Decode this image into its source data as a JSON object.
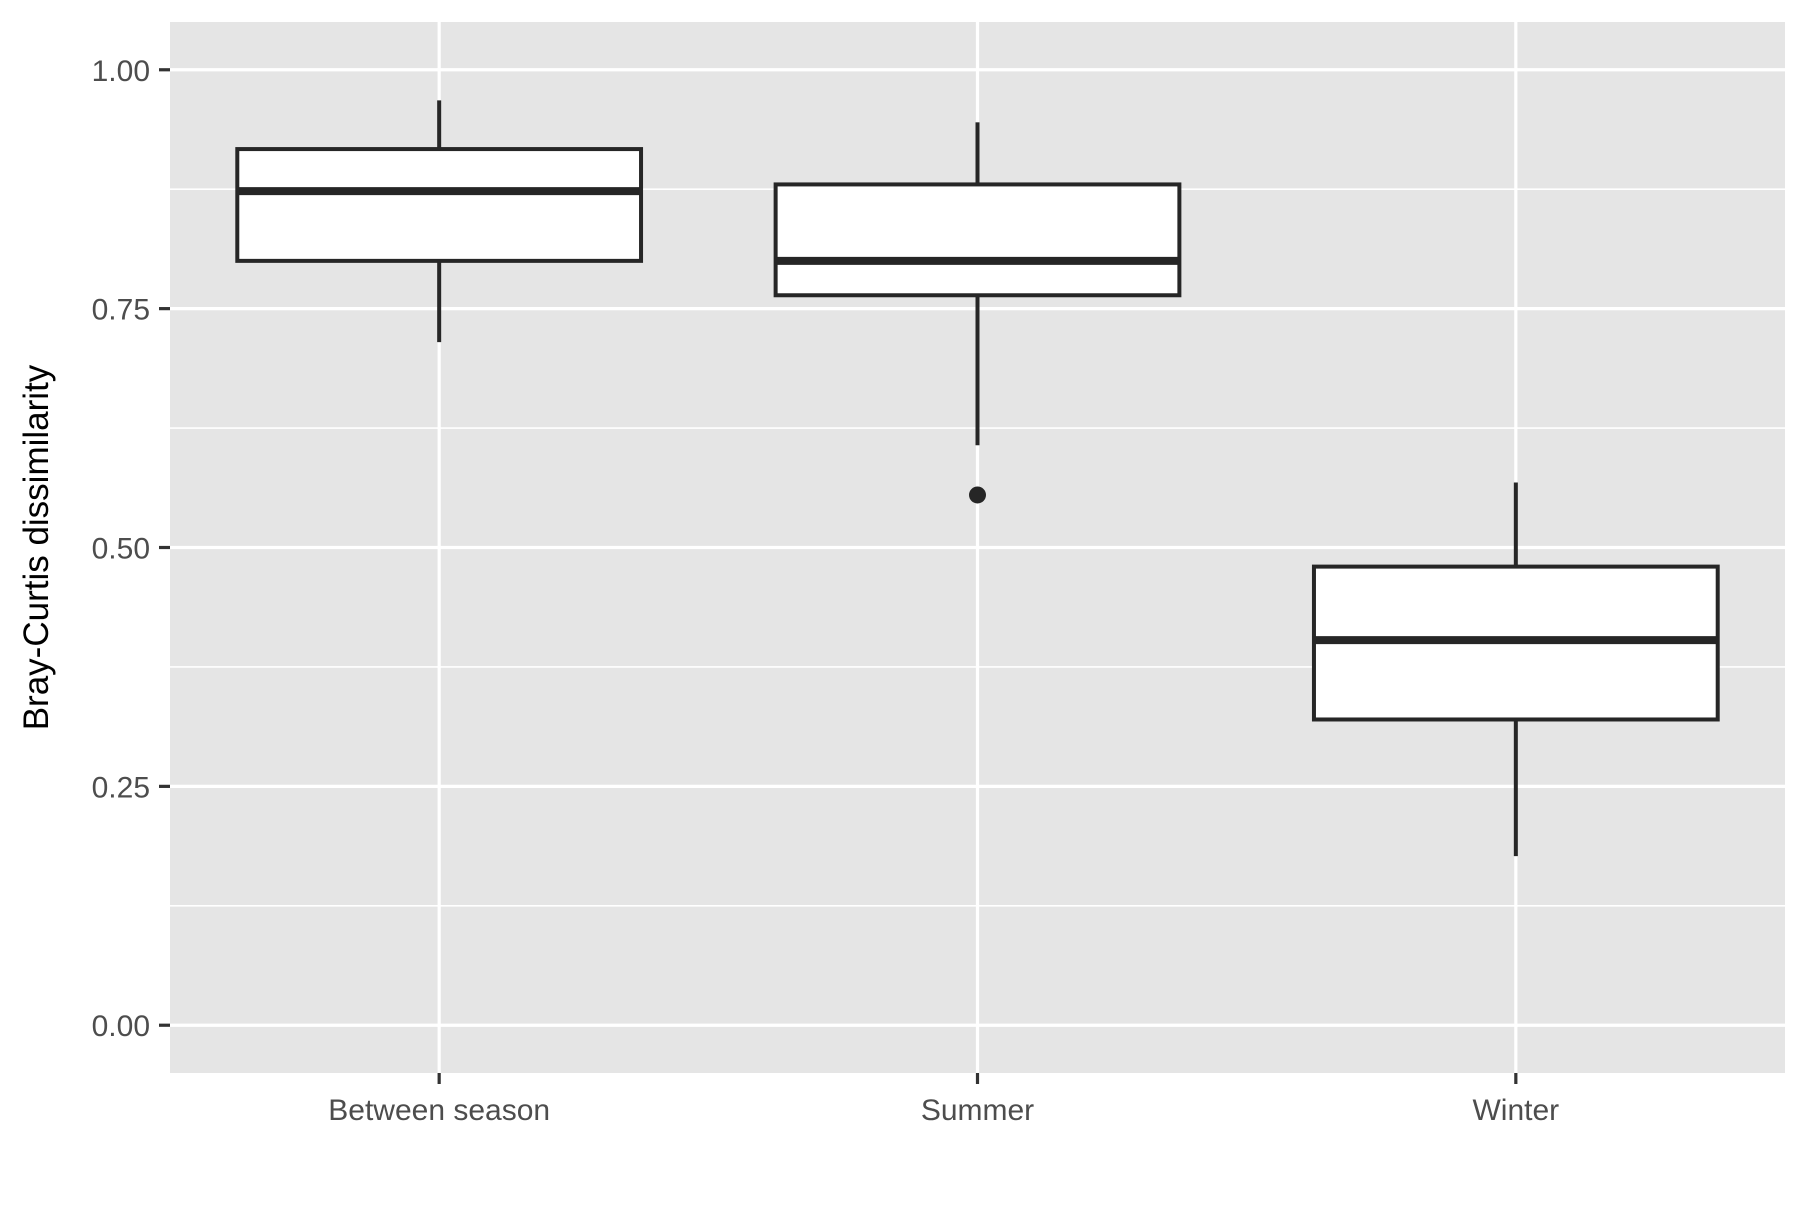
{
  "chart_data": {
    "type": "boxplot",
    "title": "",
    "xlabel": "",
    "ylabel": "Bray-Curtis dissimilarity",
    "categories": [
      "Between season",
      "Summer",
      "Winter"
    ],
    "ylim": [
      -0.05,
      1.05
    ],
    "yticks": [
      0.0,
      0.25,
      0.5,
      0.75,
      1.0
    ],
    "ytick_labels": [
      "0.00",
      "0.25",
      "0.50",
      "0.75",
      "1.00"
    ],
    "grid": true,
    "legend": "none",
    "boxes": [
      {
        "category": "Between season",
        "whisker_low": 0.715,
        "q1": 0.8,
        "median": 0.873,
        "q3": 0.917,
        "whisker_high": 0.968,
        "outliers": []
      },
      {
        "category": "Summer",
        "whisker_low": 0.607,
        "q1": 0.764,
        "median": 0.8,
        "q3": 0.88,
        "whisker_high": 0.945,
        "outliers": [
          0.555
        ]
      },
      {
        "category": "Winter",
        "whisker_low": 0.177,
        "q1": 0.32,
        "median": 0.403,
        "q3": 0.48,
        "whisker_high": 0.568,
        "outliers": []
      }
    ],
    "colors": {
      "panel_background": "#e5e5e5",
      "grid": "#ffffff",
      "box_fill": "#ffffff",
      "box_line": "#262626",
      "tick": "#333333"
    }
  }
}
